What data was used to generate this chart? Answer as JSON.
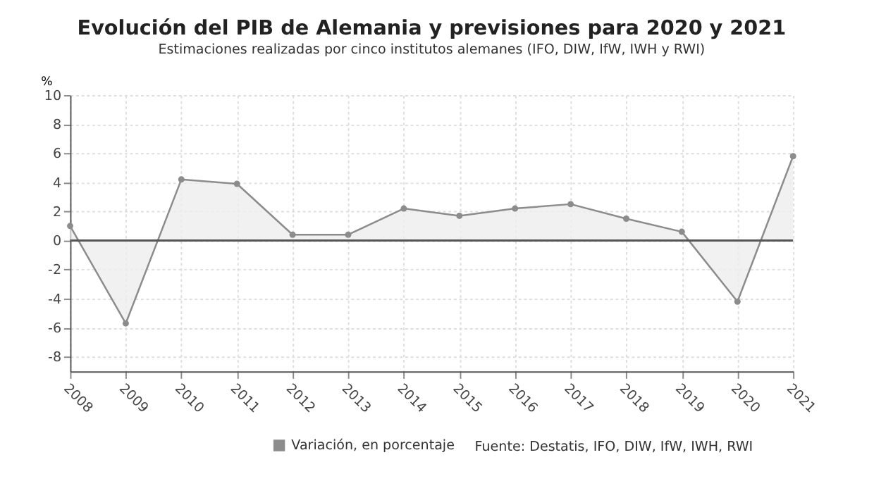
{
  "chart_data": {
    "type": "area",
    "title": "Evolución del PIB de Alemania y previsiones para 2020 y 2021",
    "subtitle": "Estimaciones realizadas por cinco institutos alemanes (IFO, DIW, IfW, IWH y RWI)",
    "ylabel": "%",
    "categories": [
      "2008",
      "2009",
      "2010",
      "2011",
      "2012",
      "2013",
      "2014",
      "2015",
      "2016",
      "2017",
      "2018",
      "2019",
      "2020",
      "2021"
    ],
    "series": [
      {
        "name": "Variación, en porcentaje",
        "color": "#8c8c8c",
        "values": [
          1.0,
          -5.7,
          4.2,
          3.9,
          0.4,
          0.4,
          2.2,
          1.7,
          2.2,
          2.5,
          1.5,
          0.6,
          -4.2,
          5.8
        ]
      }
    ],
    "ylim": [
      -9,
      10
    ],
    "yticks": [
      -8,
      -6,
      -4,
      -2,
      0,
      2,
      4,
      6,
      8,
      10
    ],
    "ref_lines": [
      {
        "axis": "y",
        "value": 0,
        "color": "#555555"
      }
    ],
    "annotations": [
      "Fuente: Destatis, IFO, DIW, IfW, IWH, RWI"
    ],
    "grid": true,
    "legend": "bottom",
    "marker": "circle",
    "line_style": "solid"
  }
}
